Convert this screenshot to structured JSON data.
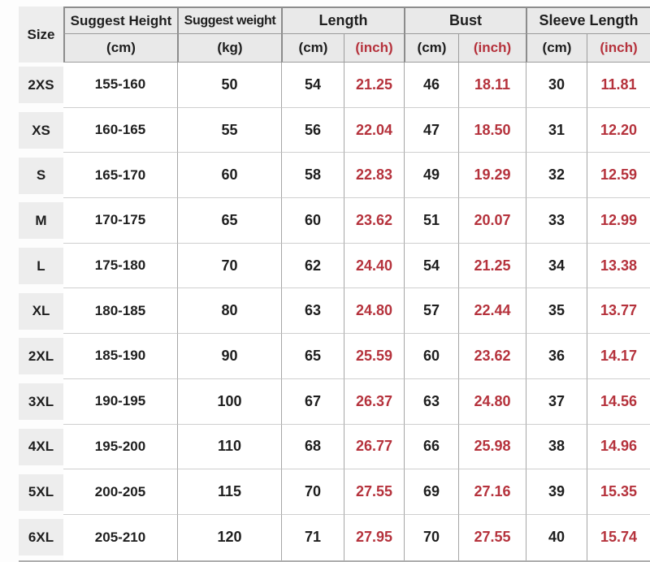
{
  "table": {
    "header": {
      "size_label": "Size",
      "groups": [
        {
          "label": "Suggest Height",
          "sub": [
            "(cm)"
          ]
        },
        {
          "label": "Suggest weight",
          "sub": [
            "(kg)"
          ]
        },
        {
          "label": "Length",
          "sub": [
            "(cm)",
            "(inch)"
          ]
        },
        {
          "label": "Bust",
          "sub": [
            "(cm)",
            "(inch)"
          ]
        },
        {
          "label": "Sleeve Length",
          "sub": [
            "(cm)",
            "(inch)"
          ]
        }
      ]
    },
    "rows": [
      {
        "size": "2XS",
        "height_cm": "155-160",
        "weight_kg": "50",
        "length_cm": "54",
        "length_inch": "21.25",
        "bust_cm": "46",
        "bust_inch": "18.11",
        "sleeve_cm": "30",
        "sleeve_inch": "11.81"
      },
      {
        "size": "XS",
        "height_cm": "160-165",
        "weight_kg": "55",
        "length_cm": "56",
        "length_inch": "22.04",
        "bust_cm": "47",
        "bust_inch": "18.50",
        "sleeve_cm": "31",
        "sleeve_inch": "12.20"
      },
      {
        "size": "S",
        "height_cm": "165-170",
        "weight_kg": "60",
        "length_cm": "58",
        "length_inch": "22.83",
        "bust_cm": "49",
        "bust_inch": "19.29",
        "sleeve_cm": "32",
        "sleeve_inch": "12.59"
      },
      {
        "size": "M",
        "height_cm": "170-175",
        "weight_kg": "65",
        "length_cm": "60",
        "length_inch": "23.62",
        "bust_cm": "51",
        "bust_inch": "20.07",
        "sleeve_cm": "33",
        "sleeve_inch": "12.99"
      },
      {
        "size": "L",
        "height_cm": "175-180",
        "weight_kg": "70",
        "length_cm": "62",
        "length_inch": "24.40",
        "bust_cm": "54",
        "bust_inch": "21.25",
        "sleeve_cm": "34",
        "sleeve_inch": "13.38"
      },
      {
        "size": "XL",
        "height_cm": "180-185",
        "weight_kg": "80",
        "length_cm": "63",
        "length_inch": "24.80",
        "bust_cm": "57",
        "bust_inch": "22.44",
        "sleeve_cm": "35",
        "sleeve_inch": "13.77"
      },
      {
        "size": "2XL",
        "height_cm": "185-190",
        "weight_kg": "90",
        "length_cm": "65",
        "length_inch": "25.59",
        "bust_cm": "60",
        "bust_inch": "23.62",
        "sleeve_cm": "36",
        "sleeve_inch": "14.17"
      },
      {
        "size": "3XL",
        "height_cm": "190-195",
        "weight_kg": "100",
        "length_cm": "67",
        "length_inch": "26.37",
        "bust_cm": "63",
        "bust_inch": "24.80",
        "sleeve_cm": "37",
        "sleeve_inch": "14.56"
      },
      {
        "size": "4XL",
        "height_cm": "195-200",
        "weight_kg": "110",
        "length_cm": "68",
        "length_inch": "26.77",
        "bust_cm": "66",
        "bust_inch": "25.98",
        "sleeve_cm": "38",
        "sleeve_inch": "14.96"
      },
      {
        "size": "5XL",
        "height_cm": "200-205",
        "weight_kg": "115",
        "length_cm": "70",
        "length_inch": "27.55",
        "bust_cm": "69",
        "bust_inch": "27.16",
        "sleeve_cm": "39",
        "sleeve_inch": "15.35"
      },
      {
        "size": "6XL",
        "height_cm": "205-210",
        "weight_kg": "120",
        "length_cm": "71",
        "length_inch": "27.95",
        "bust_cm": "70",
        "bust_inch": "27.55",
        "sleeve_cm": "40",
        "sleeve_inch": "15.74"
      }
    ]
  },
  "colors": {
    "accent_red": "#b5323c",
    "header_bg": "#e9e9e9",
    "size_cell_bg": "#ededed",
    "row_line": "#cfcfcf",
    "column_line": "#a6a6a6"
  },
  "chart_data": {
    "type": "table",
    "columns": [
      "Size",
      "Suggest Height (cm)",
      "Suggest weight (kg)",
      "Length (cm)",
      "Length (inch)",
      "Bust (cm)",
      "Bust (inch)",
      "Sleeve Length (cm)",
      "Sleeve Length (inch)"
    ],
    "rows": [
      [
        "2XS",
        "155-160",
        50,
        54,
        21.25,
        46,
        18.11,
        30,
        11.81
      ],
      [
        "XS",
        "160-165",
        55,
        56,
        22.04,
        47,
        18.5,
        31,
        12.2
      ],
      [
        "S",
        "165-170",
        60,
        58,
        22.83,
        49,
        19.29,
        32,
        12.59
      ],
      [
        "M",
        "170-175",
        65,
        60,
        23.62,
        51,
        20.07,
        33,
        12.99
      ],
      [
        "L",
        "175-180",
        70,
        62,
        24.4,
        54,
        21.25,
        34,
        13.38
      ],
      [
        "XL",
        "180-185",
        80,
        63,
        24.8,
        57,
        22.44,
        35,
        13.77
      ],
      [
        "2XL",
        "185-190",
        90,
        65,
        25.59,
        60,
        23.62,
        36,
        14.17
      ],
      [
        "3XL",
        "190-195",
        100,
        67,
        26.37,
        63,
        24.8,
        37,
        14.56
      ],
      [
        "4XL",
        "195-200",
        110,
        68,
        26.77,
        66,
        25.98,
        38,
        14.96
      ],
      [
        "5XL",
        "200-205",
        115,
        70,
        27.55,
        69,
        27.16,
        39,
        15.35
      ],
      [
        "6XL",
        "205-210",
        120,
        71,
        27.95,
        70,
        27.55,
        40,
        15.74
      ]
    ]
  }
}
